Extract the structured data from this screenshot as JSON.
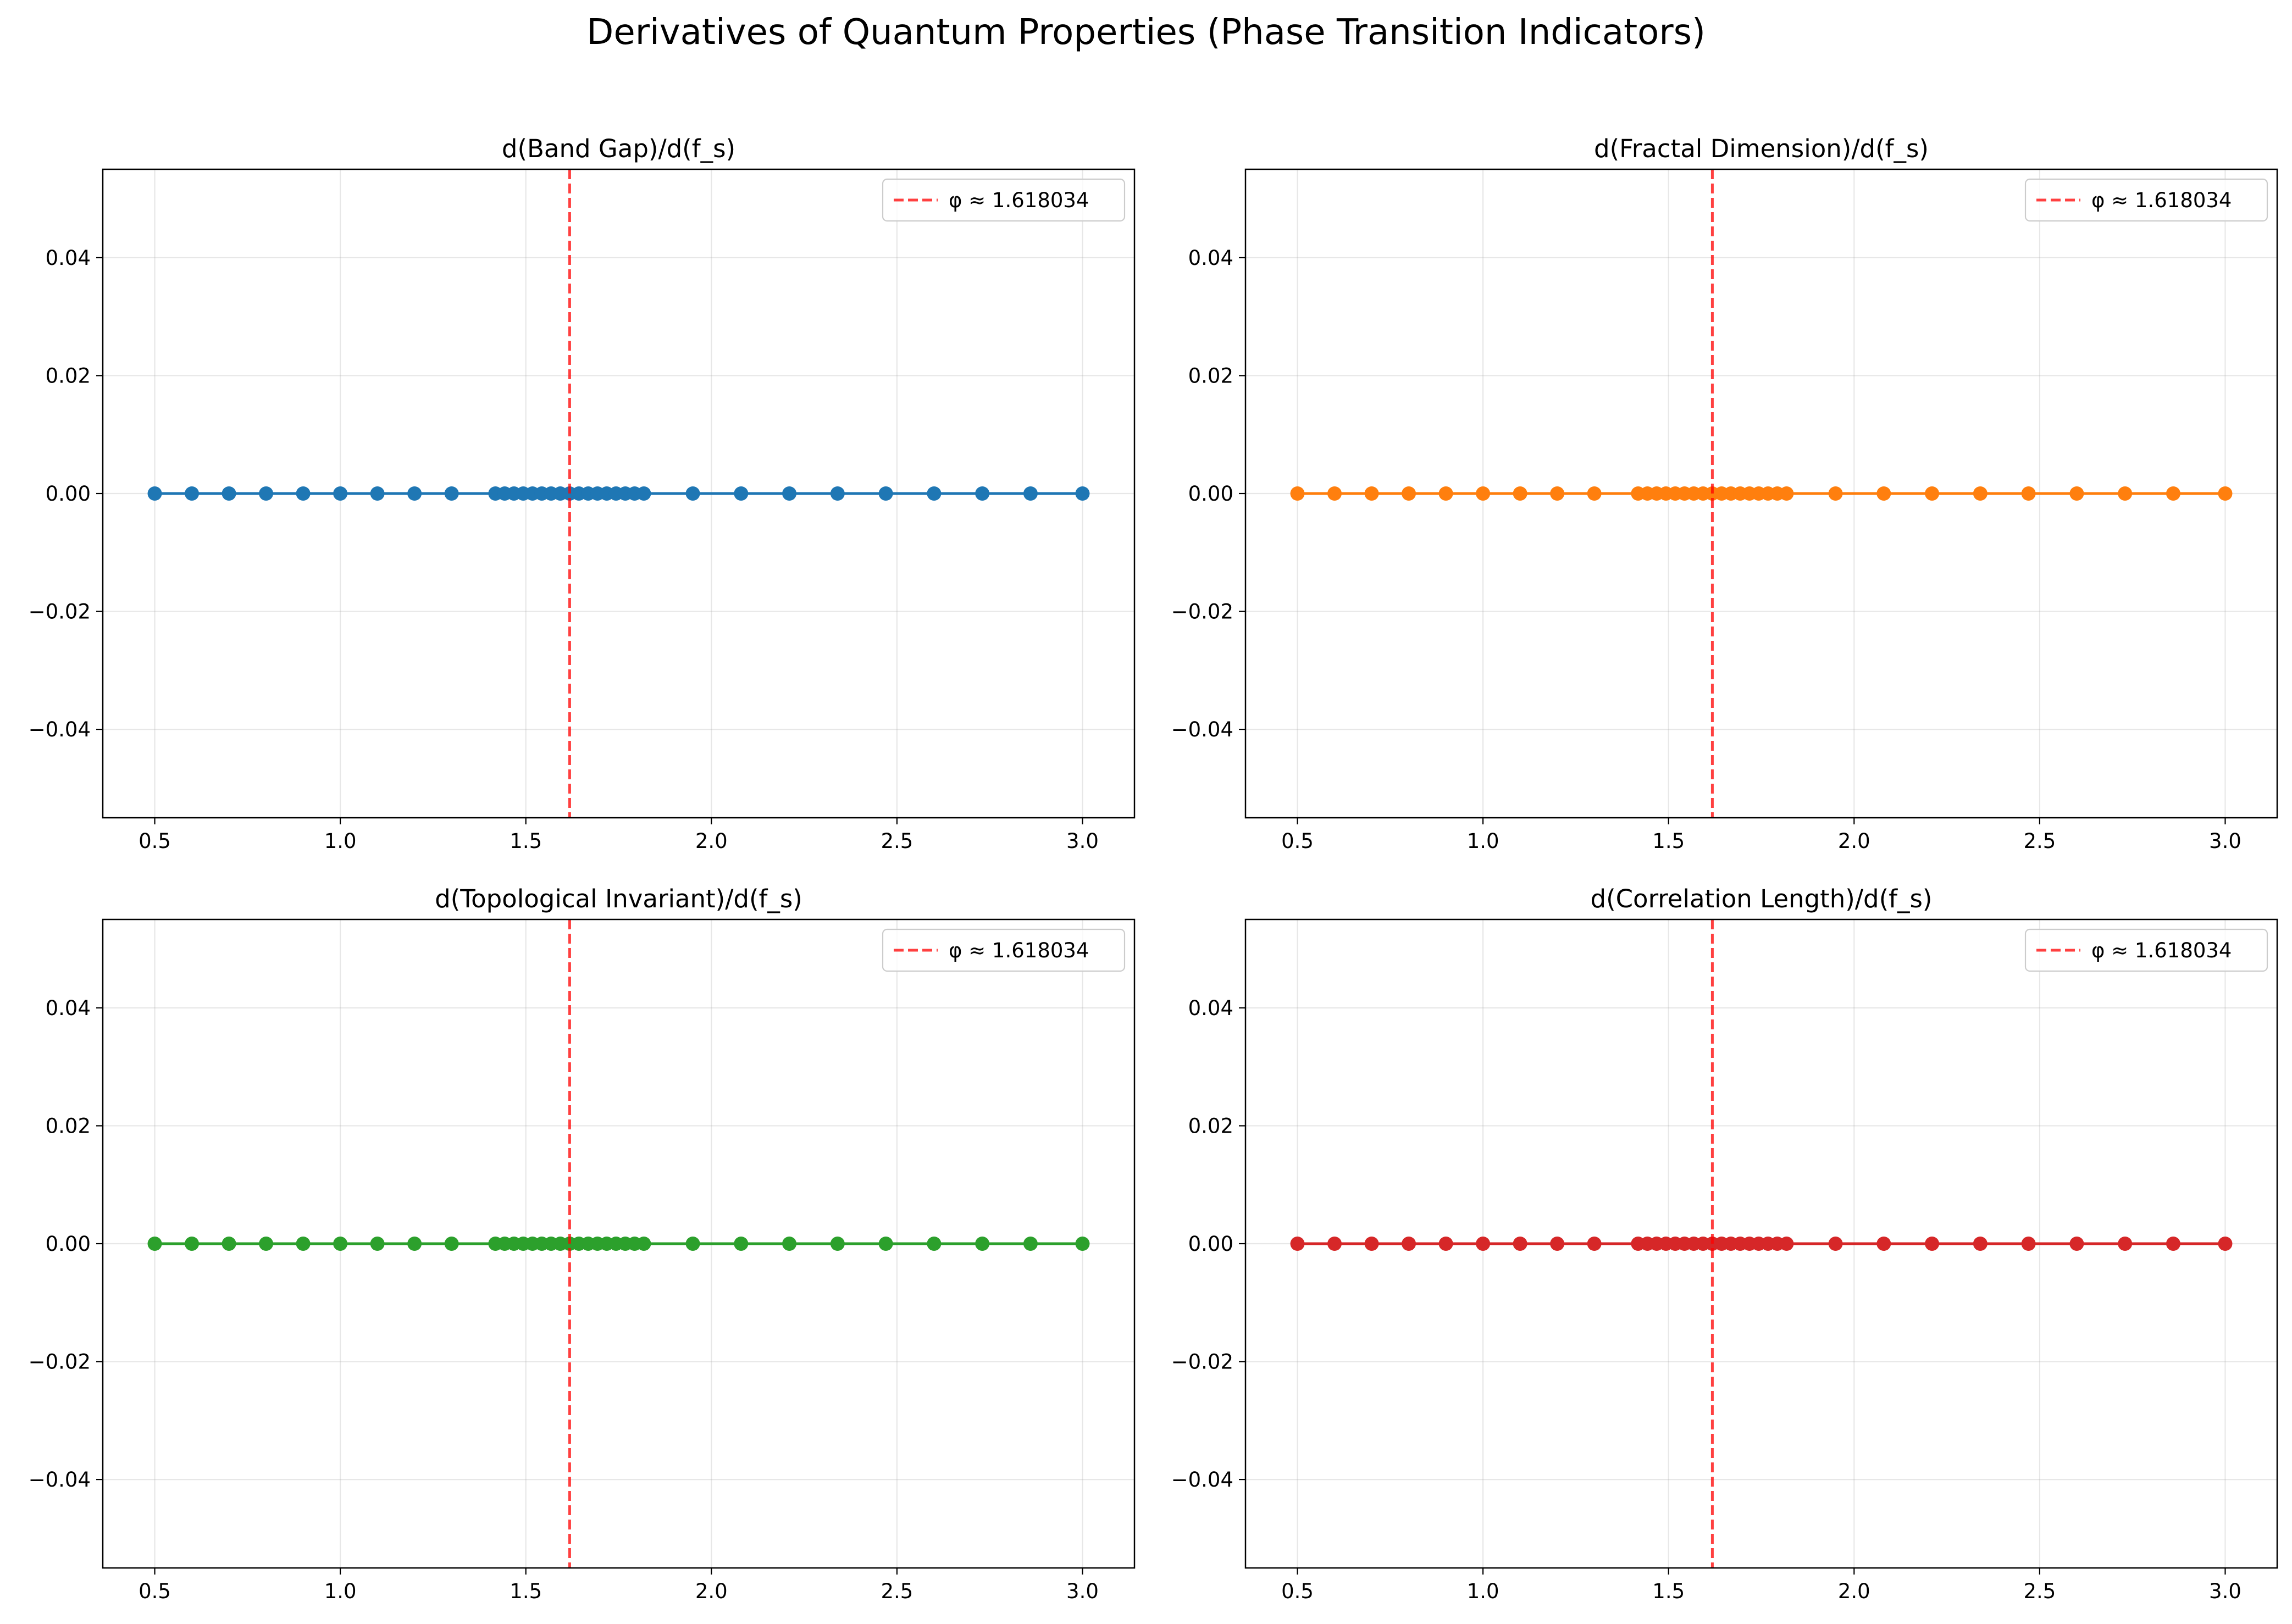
{
  "figure": {
    "title": "Derivatives of Quantum Properties (Phase Transition Indicators)"
  },
  "chart_data": [
    {
      "type": "line",
      "title": "d(Band Gap)/d(f_s)",
      "xlabel": "",
      "ylabel": "",
      "color": "#1f77b4",
      "xlim": [
        0.36,
        3.14
      ],
      "ylim": [
        -0.055,
        0.055
      ],
      "xticks": [
        "0.5",
        "1.0",
        "1.5",
        "2.0",
        "2.5",
        "3.0"
      ],
      "yticks": [
        "0.04",
        "0.02",
        "0.00",
        "−0.02",
        "−0.04"
      ],
      "grid": true,
      "legend_position": "upper right",
      "legend_label": "φ ≈ 1.618034",
      "reference_line": {
        "x": 1.618034,
        "color": "#ff0000",
        "style": "dashed"
      },
      "x": [
        0.5,
        0.6,
        0.7,
        0.8,
        0.9,
        1.0,
        1.1,
        1.2,
        1.3,
        1.418,
        1.443,
        1.468,
        1.493,
        1.518,
        1.543,
        1.568,
        1.593,
        1.618,
        1.643,
        1.668,
        1.693,
        1.718,
        1.743,
        1.768,
        1.793,
        1.818,
        1.95,
        2.08,
        2.21,
        2.34,
        2.47,
        2.6,
        2.73,
        2.86,
        3.0
      ],
      "y": [
        0,
        0,
        0,
        0,
        0,
        0,
        0,
        0,
        0,
        0,
        0,
        0,
        0,
        0,
        0,
        0,
        0,
        0,
        0,
        0,
        0,
        0,
        0,
        0,
        0,
        0,
        0,
        0,
        0,
        0,
        0,
        0,
        0,
        0,
        0
      ]
    },
    {
      "type": "line",
      "title": "d(Fractal Dimension)/d(f_s)",
      "xlabel": "",
      "ylabel": "",
      "color": "#ff7f0e",
      "xlim": [
        0.36,
        3.14
      ],
      "ylim": [
        -0.055,
        0.055
      ],
      "xticks": [
        "0.5",
        "1.0",
        "1.5",
        "2.0",
        "2.5",
        "3.0"
      ],
      "yticks": [
        "0.04",
        "0.02",
        "0.00",
        "−0.02",
        "−0.04"
      ],
      "grid": true,
      "legend_position": "upper right",
      "legend_label": "φ ≈ 1.618034",
      "reference_line": {
        "x": 1.618034,
        "color": "#ff0000",
        "style": "dashed"
      },
      "x": [
        0.5,
        0.6,
        0.7,
        0.8,
        0.9,
        1.0,
        1.1,
        1.2,
        1.3,
        1.418,
        1.443,
        1.468,
        1.493,
        1.518,
        1.543,
        1.568,
        1.593,
        1.618,
        1.643,
        1.668,
        1.693,
        1.718,
        1.743,
        1.768,
        1.793,
        1.818,
        1.95,
        2.08,
        2.21,
        2.34,
        2.47,
        2.6,
        2.73,
        2.86,
        3.0
      ],
      "y": [
        0,
        0,
        0,
        0,
        0,
        0,
        0,
        0,
        0,
        0,
        0,
        0,
        0,
        0,
        0,
        0,
        0,
        0,
        0,
        0,
        0,
        0,
        0,
        0,
        0,
        0,
        0,
        0,
        0,
        0,
        0,
        0,
        0,
        0,
        0
      ]
    },
    {
      "type": "line",
      "title": "d(Topological Invariant)/d(f_s)",
      "xlabel": "",
      "ylabel": "",
      "color": "#2ca02c",
      "xlim": [
        0.36,
        3.14
      ],
      "ylim": [
        -0.055,
        0.055
      ],
      "xticks": [
        "0.5",
        "1.0",
        "1.5",
        "2.0",
        "2.5",
        "3.0"
      ],
      "yticks": [
        "0.04",
        "0.02",
        "0.00",
        "−0.02",
        "−0.04"
      ],
      "grid": true,
      "legend_position": "upper right",
      "legend_label": "φ ≈ 1.618034",
      "reference_line": {
        "x": 1.618034,
        "color": "#ff0000",
        "style": "dashed"
      },
      "x": [
        0.5,
        0.6,
        0.7,
        0.8,
        0.9,
        1.0,
        1.1,
        1.2,
        1.3,
        1.418,
        1.443,
        1.468,
        1.493,
        1.518,
        1.543,
        1.568,
        1.593,
        1.618,
        1.643,
        1.668,
        1.693,
        1.718,
        1.743,
        1.768,
        1.793,
        1.818,
        1.95,
        2.08,
        2.21,
        2.34,
        2.47,
        2.6,
        2.73,
        2.86,
        3.0
      ],
      "y": [
        0,
        0,
        0,
        0,
        0,
        0,
        0,
        0,
        0,
        0,
        0,
        0,
        0,
        0,
        0,
        0,
        0,
        0,
        0,
        0,
        0,
        0,
        0,
        0,
        0,
        0,
        0,
        0,
        0,
        0,
        0,
        0,
        0,
        0,
        0
      ]
    },
    {
      "type": "line",
      "title": "d(Correlation Length)/d(f_s)",
      "xlabel": "",
      "ylabel": "",
      "color": "#d62728",
      "xlim": [
        0.36,
        3.14
      ],
      "ylim": [
        -0.055,
        0.055
      ],
      "xticks": [
        "0.5",
        "1.0",
        "1.5",
        "2.0",
        "2.5",
        "3.0"
      ],
      "yticks": [
        "0.04",
        "0.02",
        "0.00",
        "−0.02",
        "−0.04"
      ],
      "grid": true,
      "legend_position": "upper right",
      "legend_label": "φ ≈ 1.618034",
      "reference_line": {
        "x": 1.618034,
        "color": "#ff0000",
        "style": "dashed"
      },
      "x": [
        0.5,
        0.6,
        0.7,
        0.8,
        0.9,
        1.0,
        1.1,
        1.2,
        1.3,
        1.418,
        1.443,
        1.468,
        1.493,
        1.518,
        1.543,
        1.568,
        1.593,
        1.618,
        1.643,
        1.668,
        1.693,
        1.718,
        1.743,
        1.768,
        1.793,
        1.818,
        1.95,
        2.08,
        2.21,
        2.34,
        2.47,
        2.6,
        2.73,
        2.86,
        3.0
      ],
      "y": [
        0,
        0,
        0,
        0,
        0,
        0,
        0,
        0,
        0,
        0,
        0,
        0,
        0,
        0,
        0,
        0,
        0,
        0,
        0,
        0,
        0,
        0,
        0,
        0,
        0,
        0,
        0,
        0,
        0,
        0,
        0,
        0,
        0,
        0,
        0
      ]
    }
  ]
}
